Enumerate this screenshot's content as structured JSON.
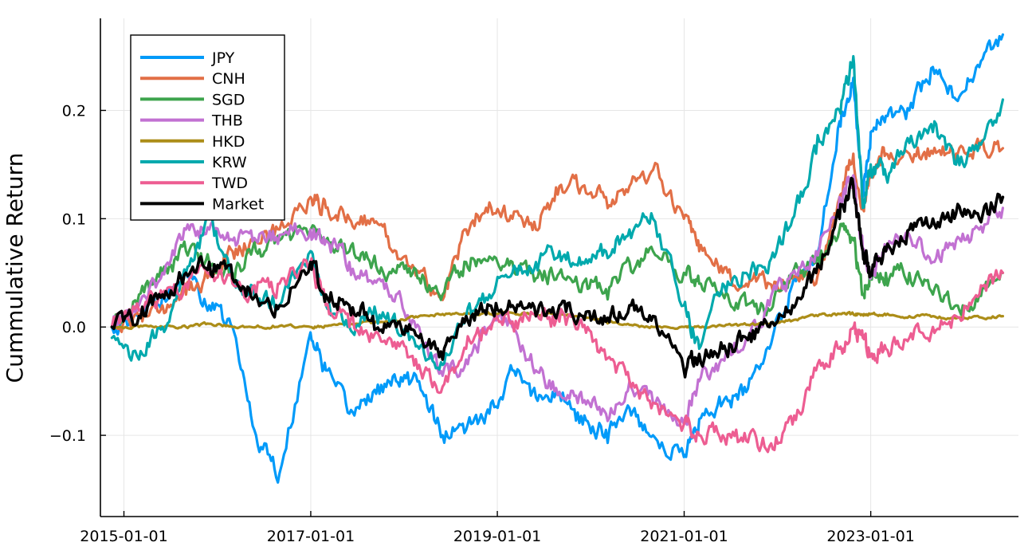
{
  "chart_data": {
    "type": "line",
    "title": "",
    "xlabel": "",
    "ylabel": "Cummulative Return",
    "x_ticks": [
      "2015-01-01",
      "2017-01-01",
      "2019-01-01",
      "2021-01-01",
      "2023-01-01"
    ],
    "y_ticks": [
      "−0.1",
      "0.0",
      "0.1",
      "0.2"
    ],
    "y_tick_values": [
      -0.1,
      0.0,
      0.1,
      0.2
    ],
    "xlim": [
      "2014-10-01",
      "2024-08-01"
    ],
    "ylim": [
      -0.175,
      0.285
    ],
    "grid": true,
    "legend_position": "top-left",
    "x": [
      "2014-11-15",
      "2015-03-01",
      "2015-06-01",
      "2015-09-01",
      "2015-12-01",
      "2016-03-01",
      "2016-06-01",
      "2016-09-01",
      "2016-12-31",
      "2017-03-01",
      "2017-06-01",
      "2017-09-01",
      "2017-12-01",
      "2018-03-01",
      "2018-06-01",
      "2018-09-01",
      "2018-12-01",
      "2019-03-01",
      "2019-06-01",
      "2019-09-01",
      "2019-12-01",
      "2020-03-01",
      "2020-06-01",
      "2020-09-01",
      "2020-12-31",
      "2021-03-01",
      "2021-06-01",
      "2021-09-01",
      "2021-12-01",
      "2022-03-01",
      "2022-06-01",
      "2022-09-01",
      "2022-10-25",
      "2022-12-01",
      "2023-01-01",
      "2023-03-01",
      "2023-06-01",
      "2023-09-01",
      "2023-12-01",
      "2024-03-01",
      "2024-06-01"
    ],
    "series": [
      {
        "name": "JPY",
        "color": "#009AF9",
        "values": [
          0.0,
          0.01,
          0.03,
          0.05,
          0.02,
          0.0,
          -0.1,
          -0.135,
          -0.005,
          -0.04,
          -0.08,
          -0.06,
          -0.05,
          -0.05,
          -0.1,
          -0.095,
          -0.08,
          -0.04,
          -0.065,
          -0.06,
          -0.09,
          -0.095,
          -0.075,
          -0.1,
          -0.12,
          -0.085,
          -0.07,
          -0.06,
          -0.02,
          0.04,
          0.065,
          0.19,
          0.23,
          0.12,
          0.18,
          0.195,
          0.2,
          0.24,
          0.21,
          0.24,
          0.27
        ]
      },
      {
        "name": "CNH",
        "color": "#E26F46",
        "values": [
          0.0,
          0.01,
          0.02,
          0.03,
          0.05,
          0.07,
          0.08,
          0.09,
          0.12,
          0.11,
          0.1,
          0.1,
          0.07,
          0.05,
          0.025,
          0.09,
          0.115,
          0.1,
          0.09,
          0.13,
          0.13,
          0.12,
          0.13,
          0.145,
          0.1,
          0.07,
          0.05,
          0.04,
          0.04,
          0.045,
          0.04,
          0.12,
          0.16,
          0.11,
          0.14,
          0.16,
          0.16,
          0.16,
          0.16,
          0.165,
          0.165
        ]
      },
      {
        "name": "SGD",
        "color": "#3DA44D",
        "values": [
          0.0,
          0.03,
          0.05,
          0.07,
          0.06,
          0.05,
          0.07,
          0.08,
          0.09,
          0.08,
          0.07,
          0.06,
          0.05,
          0.045,
          0.03,
          0.06,
          0.065,
          0.06,
          0.045,
          0.05,
          0.04,
          0.035,
          0.06,
          0.07,
          0.05,
          0.04,
          0.03,
          0.02,
          0.015,
          0.05,
          0.06,
          0.09,
          0.08,
          0.03,
          0.05,
          0.05,
          0.05,
          0.03,
          0.02,
          0.03,
          0.05
        ]
      },
      {
        "name": "THB",
        "color": "#C271D2",
        "values": [
          0.0,
          0.02,
          0.05,
          0.09,
          0.09,
          0.08,
          0.08,
          0.085,
          0.09,
          0.08,
          0.06,
          0.04,
          0.03,
          0.0,
          -0.045,
          -0.03,
          0.0,
          0.0,
          -0.04,
          -0.06,
          -0.07,
          -0.08,
          -0.05,
          -0.07,
          -0.09,
          -0.05,
          -0.03,
          -0.01,
          0.02,
          0.05,
          0.07,
          0.12,
          0.14,
          0.07,
          0.045,
          0.07,
          0.085,
          0.06,
          0.08,
          0.09,
          0.11
        ]
      },
      {
        "name": "HKD",
        "color": "#AC8D18",
        "values": [
          0.0,
          0.0,
          0.0,
          0.0,
          0.003,
          0.0,
          0.0,
          0.001,
          0.0,
          0.001,
          0.002,
          0.004,
          0.006,
          0.01,
          0.012,
          0.012,
          0.012,
          0.013,
          0.012,
          0.012,
          0.01,
          0.005,
          0.002,
          0.0,
          0.0,
          0.0,
          0.001,
          0.002,
          0.003,
          0.006,
          0.011,
          0.012,
          0.012,
          0.011,
          0.012,
          0.011,
          0.01,
          0.01,
          0.008,
          0.009,
          0.01
        ]
      },
      {
        "name": "KRW",
        "color": "#00A9AD",
        "values": [
          -0.01,
          -0.03,
          0.0,
          0.05,
          0.1,
          0.04,
          0.03,
          0.02,
          0.07,
          0.02,
          0.0,
          0.01,
          0.0,
          -0.02,
          -0.035,
          0.01,
          0.03,
          0.05,
          0.06,
          0.07,
          0.06,
          0.07,
          0.09,
          0.1,
          0.02,
          -0.02,
          0.04,
          0.05,
          0.06,
          0.1,
          0.16,
          0.2,
          0.25,
          0.11,
          0.15,
          0.14,
          0.17,
          0.18,
          0.15,
          0.17,
          0.21
        ]
      },
      {
        "name": "TWD",
        "color": "#ED5D92",
        "values": [
          0.0,
          0.015,
          0.03,
          0.04,
          0.05,
          0.04,
          0.03,
          0.04,
          0.06,
          0.02,
          0.0,
          -0.01,
          -0.02,
          -0.035,
          -0.055,
          -0.02,
          0.0,
          0.005,
          0.01,
          0.005,
          0.0,
          -0.03,
          -0.05,
          -0.07,
          -0.09,
          -0.1,
          -0.1,
          -0.105,
          -0.11,
          -0.09,
          -0.04,
          -0.02,
          0.0,
          -0.01,
          -0.025,
          -0.02,
          -0.01,
          0.0,
          0.01,
          0.03,
          0.05
        ]
      },
      {
        "name": "Market",
        "color": "#000000",
        "values": [
          0.0,
          0.01,
          0.03,
          0.05,
          0.06,
          0.045,
          0.03,
          0.02,
          0.06,
          0.03,
          0.02,
          0.01,
          0.0,
          -0.01,
          -0.03,
          0.01,
          0.02,
          0.02,
          0.01,
          0.02,
          0.01,
          0.005,
          0.02,
          0.01,
          -0.04,
          -0.025,
          -0.02,
          -0.01,
          0.0,
          0.02,
          0.05,
          0.1,
          0.13,
          0.07,
          0.05,
          0.07,
          0.09,
          0.1,
          0.105,
          0.1,
          0.12
        ]
      }
    ]
  }
}
